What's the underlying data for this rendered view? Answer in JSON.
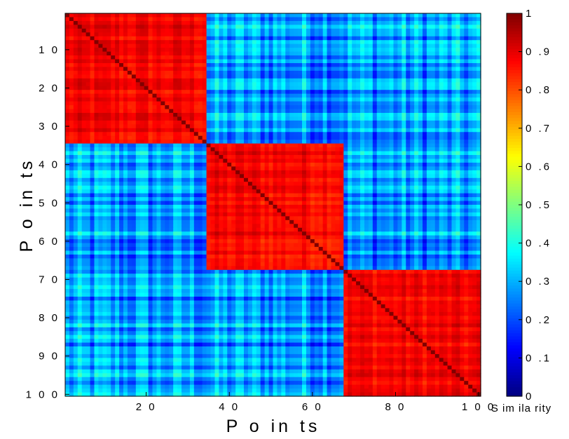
{
  "chart_data": {
    "type": "heatmap",
    "title": "",
    "xlabel": "P o in ts",
    "ylabel": "P o in ts",
    "n_points": 100,
    "x_ticks": [
      20,
      40,
      60,
      80,
      100
    ],
    "x_tick_labels": [
      "2 0",
      "4 0",
      "6 0",
      "8 0",
      "1 0 0"
    ],
    "y_ticks": [
      10,
      20,
      30,
      40,
      50,
      60,
      70,
      80,
      90,
      100
    ],
    "y_tick_labels": [
      "1 0",
      "2 0",
      "3 0",
      "4 0",
      "5 0",
      "6 0",
      "7 0",
      "8 0",
      "9 0",
      "1 0 0"
    ],
    "clusters": [
      {
        "start": 1,
        "end": 34
      },
      {
        "start": 35,
        "end": 67
      },
      {
        "start": 68,
        "end": 100
      }
    ],
    "within_cluster_similarity": [
      0.8,
      0.95
    ],
    "between_cluster_similarity": [
      0.1,
      0.45
    ],
    "diagonal_value": 1,
    "colorbar": {
      "label": "S im ila rity",
      "range": [
        0,
        1
      ],
      "colormap": "jet",
      "ticks": [
        0,
        0.1,
        0.2,
        0.3,
        0.4,
        0.5,
        0.6,
        0.7,
        0.8,
        0.9,
        1
      ],
      "tick_labels": [
        "0",
        "0 .1",
        "0 .2",
        "0 .3",
        "0 .4",
        "0 .5",
        "0 .6",
        "0 .7",
        "0 .8",
        "0 .9",
        "1"
      ]
    }
  }
}
